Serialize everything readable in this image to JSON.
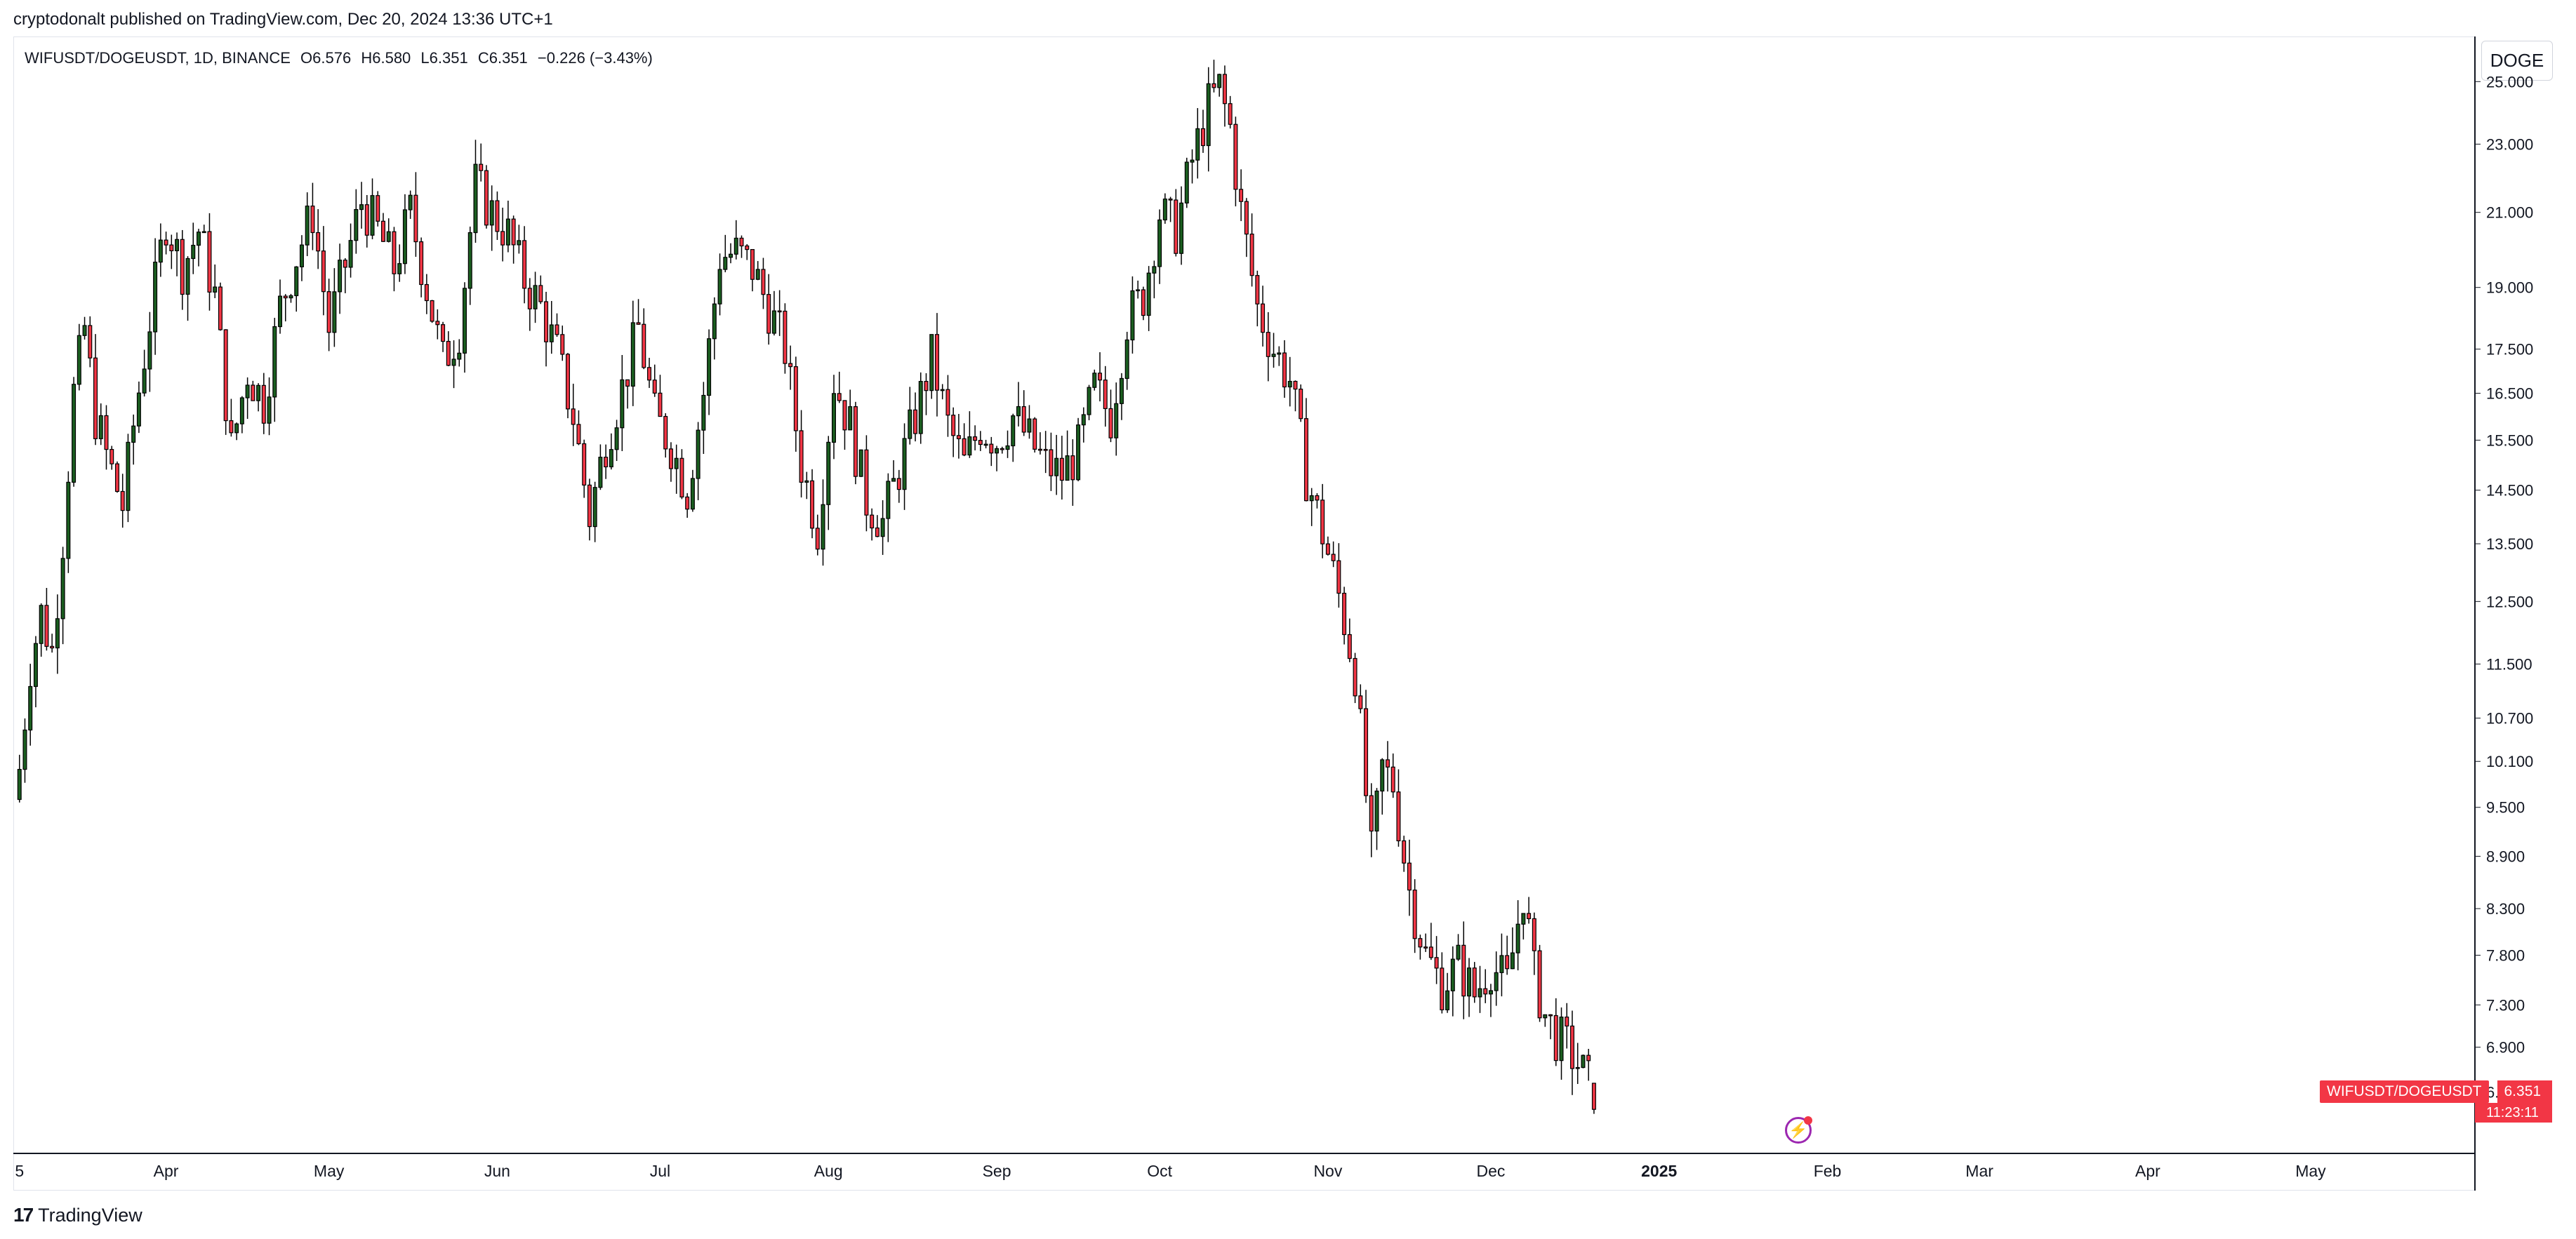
{
  "header": {
    "publish_line": "cryptodonalt published on TradingView.com, Dec 20, 2024 13:36 UTC+1"
  },
  "symbol_info": {
    "pair": "WIFUSDT/DOGEUSDT, 1D, BINANCE",
    "open": "O6.576",
    "high": "H6.580",
    "low": "L6.351",
    "close": "C6.351",
    "change": "−0.226 (−3.43%)"
  },
  "currency_button": "DOGE",
  "last_price": {
    "symbol": "WIFUSDT/DOGEUSDT",
    "value": "6.351",
    "countdown": "11:23:11"
  },
  "footer": {
    "brand": "TradingView",
    "logo_glyph": "17"
  },
  "icons": {
    "event": "lightning-bolt-icon",
    "logo": "tradingview-logo-icon"
  },
  "colors": {
    "up": "#1b5e20",
    "down": "#f23645",
    "candle_body": "#000000",
    "label_bg": "#f23645",
    "event": "#9c27b0"
  },
  "chart_data": {
    "type": "candlestick",
    "title": "WIFUSDT/DOGEUSDT, 1D, BINANCE",
    "xlabel": "",
    "ylabel": "",
    "y_scale": "log",
    "ylim": [
      6.0,
      26.5
    ],
    "x_range": [
      "2024-03-04",
      "2025-05-31"
    ],
    "grid": false,
    "x_ticks": [
      {
        "label": "5",
        "date": "2024-03-05"
      },
      {
        "label": "Apr",
        "date": "2024-04-01"
      },
      {
        "label": "May",
        "date": "2024-05-01"
      },
      {
        "label": "Jun",
        "date": "2024-06-01"
      },
      {
        "label": "Jul",
        "date": "2024-07-01"
      },
      {
        "label": "Aug",
        "date": "2024-08-01"
      },
      {
        "label": "Sep",
        "date": "2024-09-01"
      },
      {
        "label": "Oct",
        "date": "2024-10-01"
      },
      {
        "label": "Nov",
        "date": "2024-11-01"
      },
      {
        "label": "Dec",
        "date": "2024-12-01"
      },
      {
        "label": "2025",
        "date": "2025-01-01",
        "bold": true
      },
      {
        "label": "Feb",
        "date": "2025-02-01"
      },
      {
        "label": "Mar",
        "date": "2025-03-01"
      },
      {
        "label": "Apr",
        "date": "2025-04-01"
      },
      {
        "label": "May",
        "date": "2025-05-01"
      }
    ],
    "y_ticks": [
      "25.000",
      "23.000",
      "21.000",
      "19.000",
      "17.500",
      "16.500",
      "15.500",
      "14.500",
      "13.500",
      "12.500",
      "11.500",
      "10.700",
      "10.100",
      "9.500",
      "8.900",
      "8.300",
      "7.800",
      "7.300",
      "6.900",
      "6.500"
    ],
    "close_path": [
      {
        "date": "2024-03-05",
        "close": 10.0
      },
      {
        "date": "2024-03-07",
        "close": 11.5
      },
      {
        "date": "2024-03-09",
        "close": 12.3
      },
      {
        "date": "2024-03-11",
        "close": 11.7
      },
      {
        "date": "2024-03-13",
        "close": 13.6
      },
      {
        "date": "2024-03-15",
        "close": 16.5
      },
      {
        "date": "2024-03-17",
        "close": 18.0
      },
      {
        "date": "2024-03-19",
        "close": 16.0
      },
      {
        "date": "2024-03-21",
        "close": 15.2
      },
      {
        "date": "2024-03-24",
        "close": 14.2
      },
      {
        "date": "2024-03-26",
        "close": 15.8
      },
      {
        "date": "2024-03-29",
        "close": 18.2
      },
      {
        "date": "2024-04-01",
        "close": 20.8
      },
      {
        "date": "2024-04-04",
        "close": 19.5
      },
      {
        "date": "2024-04-07",
        "close": 20.5
      },
      {
        "date": "2024-04-10",
        "close": 18.8
      },
      {
        "date": "2024-04-13",
        "close": 15.3
      },
      {
        "date": "2024-04-16",
        "close": 17.0
      },
      {
        "date": "2024-04-19",
        "close": 16.3
      },
      {
        "date": "2024-04-22",
        "close": 18.5
      },
      {
        "date": "2024-04-25",
        "close": 19.8
      },
      {
        "date": "2024-04-28",
        "close": 21.0
      },
      {
        "date": "2024-05-01",
        "close": 18.0
      },
      {
        "date": "2024-05-04",
        "close": 19.6
      },
      {
        "date": "2024-05-07",
        "close": 21.3
      },
      {
        "date": "2024-05-10",
        "close": 20.5
      },
      {
        "date": "2024-05-13",
        "close": 19.5
      },
      {
        "date": "2024-05-16",
        "close": 21.0
      },
      {
        "date": "2024-05-19",
        "close": 19.0
      },
      {
        "date": "2024-05-22",
        "close": 17.2
      },
      {
        "date": "2024-05-25",
        "close": 18.0
      },
      {
        "date": "2024-05-28",
        "close": 21.8
      },
      {
        "date": "2024-05-31",
        "close": 21.0
      },
      {
        "date": "2024-06-03",
        "close": 20.4
      },
      {
        "date": "2024-06-06",
        "close": 19.2
      },
      {
        "date": "2024-06-09",
        "close": 18.5
      },
      {
        "date": "2024-06-12",
        "close": 17.4
      },
      {
        "date": "2024-06-15",
        "close": 16.0
      },
      {
        "date": "2024-06-18",
        "close": 14.0
      },
      {
        "date": "2024-06-21",
        "close": 15.5
      },
      {
        "date": "2024-06-24",
        "close": 16.6
      },
      {
        "date": "2024-06-27",
        "close": 18.0
      },
      {
        "date": "2024-06-30",
        "close": 16.0
      },
      {
        "date": "2024-07-03",
        "close": 15.4
      },
      {
        "date": "2024-07-06",
        "close": 14.5
      },
      {
        "date": "2024-07-09",
        "close": 16.5
      },
      {
        "date": "2024-07-12",
        "close": 19.8
      },
      {
        "date": "2024-07-15",
        "close": 19.9
      },
      {
        "date": "2024-07-18",
        "close": 19.5
      },
      {
        "date": "2024-07-21",
        "close": 18.5
      },
      {
        "date": "2024-07-24",
        "close": 17.5
      },
      {
        "date": "2024-07-27",
        "close": 15.0
      },
      {
        "date": "2024-07-30",
        "close": 13.8
      },
      {
        "date": "2024-08-02",
        "close": 16.8
      },
      {
        "date": "2024-08-05",
        "close": 15.8
      },
      {
        "date": "2024-08-08",
        "close": 14.3
      },
      {
        "date": "2024-08-11",
        "close": 13.9
      },
      {
        "date": "2024-08-14",
        "close": 14.9
      },
      {
        "date": "2024-08-17",
        "close": 16.0
      },
      {
        "date": "2024-08-20",
        "close": 17.3
      },
      {
        "date": "2024-08-23",
        "close": 15.8
      },
      {
        "date": "2024-08-26",
        "close": 15.0
      },
      {
        "date": "2024-08-29",
        "close": 15.8
      },
      {
        "date": "2024-09-01",
        "close": 15.5
      },
      {
        "date": "2024-09-04",
        "close": 16.0
      },
      {
        "date": "2024-09-07",
        "close": 15.5
      },
      {
        "date": "2024-09-10",
        "close": 15.0
      },
      {
        "date": "2024-09-13",
        "close": 14.8
      },
      {
        "date": "2024-09-16",
        "close": 15.3
      },
      {
        "date": "2024-09-19",
        "close": 16.6
      },
      {
        "date": "2024-09-22",
        "close": 16.0
      },
      {
        "date": "2024-09-25",
        "close": 18.2
      },
      {
        "date": "2024-09-28",
        "close": 18.8
      },
      {
        "date": "2024-10-01",
        "close": 21.0
      },
      {
        "date": "2024-10-04",
        "close": 20.5
      },
      {
        "date": "2024-10-07",
        "close": 22.5
      },
      {
        "date": "2024-10-10",
        "close": 24.2
      },
      {
        "date": "2024-10-12",
        "close": 24.8
      },
      {
        "date": "2024-10-14",
        "close": 23.5
      },
      {
        "date": "2024-10-16",
        "close": 21.0
      },
      {
        "date": "2024-10-19",
        "close": 18.5
      },
      {
        "date": "2024-10-22",
        "close": 17.5
      },
      {
        "date": "2024-10-25",
        "close": 16.8
      },
      {
        "date": "2024-10-28",
        "close": 14.8
      },
      {
        "date": "2024-10-31",
        "close": 13.7
      },
      {
        "date": "2024-11-03",
        "close": 12.6
      },
      {
        "date": "2024-11-06",
        "close": 11.4
      },
      {
        "date": "2024-11-09",
        "close": 8.9
      },
      {
        "date": "2024-11-11",
        "close": 10.0
      },
      {
        "date": "2024-11-13",
        "close": 9.8
      },
      {
        "date": "2024-11-16",
        "close": 8.5
      },
      {
        "date": "2024-11-19",
        "close": 7.8
      },
      {
        "date": "2024-11-22",
        "close": 7.5
      },
      {
        "date": "2024-11-25",
        "close": 7.7
      },
      {
        "date": "2024-11-28",
        "close": 7.4
      },
      {
        "date": "2024-12-01",
        "close": 7.7
      },
      {
        "date": "2024-12-04",
        "close": 7.5
      },
      {
        "date": "2024-12-07",
        "close": 8.5
      },
      {
        "date": "2024-12-09",
        "close": 7.6
      },
      {
        "date": "2024-12-11",
        "close": 7.2
      },
      {
        "date": "2024-12-13",
        "close": 7.0
      },
      {
        "date": "2024-12-15",
        "close": 6.9
      },
      {
        "date": "2024-12-17",
        "close": 6.75
      },
      {
        "date": "2024-12-19",
        "close": 6.576
      },
      {
        "date": "2024-12-20",
        "close": 6.351
      }
    ],
    "last_candle": {
      "date": "2024-12-20",
      "open": 6.576,
      "high": 6.58,
      "low": 6.351,
      "close": 6.351
    }
  }
}
